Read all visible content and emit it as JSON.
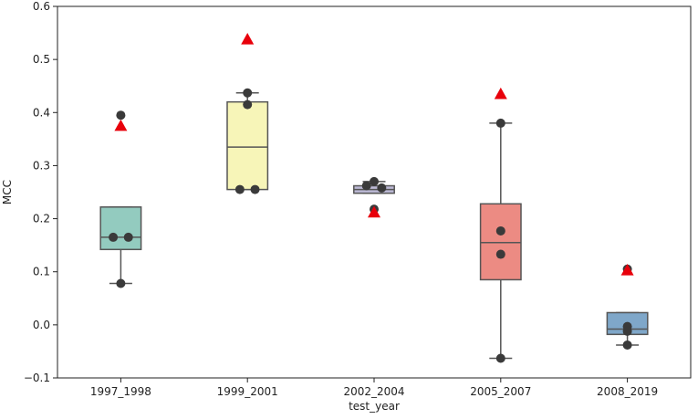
{
  "chart_data": {
    "type": "box",
    "title": "",
    "xlabel": "test_year",
    "ylabel": "MCC",
    "ylim": [
      -0.1,
      0.6
    ],
    "yticks": [
      -0.1,
      0.0,
      0.1,
      0.2,
      0.3,
      0.4,
      0.5,
      0.6
    ],
    "ytick_labels": [
      "−0.1",
      "0.0",
      "0.1",
      "0.2",
      "0.3",
      "0.4",
      "0.5",
      "0.6"
    ],
    "categories": [
      "1997_1998",
      "1999_2001",
      "2002_2004",
      "2005_2007",
      "2008_2019"
    ],
    "grid": false,
    "legend": "none",
    "boxes": [
      {
        "category": "1997_1998",
        "color": "#93cbbf",
        "whisker_low": 0.078,
        "q1": 0.142,
        "median": 0.165,
        "q3": 0.222,
        "whisker_high": 0.222,
        "points": [
          0.395,
          0.165,
          0.165,
          0.078
        ],
        "marker_value": 0.375
      },
      {
        "category": "1999_2001",
        "color": "#f7f5b8",
        "whisker_low": 0.255,
        "q1": 0.255,
        "median": 0.335,
        "q3": 0.42,
        "whisker_high": 0.437,
        "points": [
          0.437,
          0.415,
          0.255,
          0.255
        ],
        "marker_value": 0.538
      },
      {
        "category": "2002_2004",
        "color": "#bcb9d5",
        "whisker_low": 0.248,
        "q1": 0.248,
        "median": 0.255,
        "q3": 0.262,
        "whisker_high": 0.27,
        "points": [
          0.27,
          0.262,
          0.258,
          0.218
        ],
        "marker_value": 0.212
      },
      {
        "category": "2005_2007",
        "color": "#ec8b83",
        "whisker_low": -0.063,
        "q1": 0.085,
        "median": 0.155,
        "q3": 0.228,
        "whisker_high": 0.38,
        "points": [
          0.38,
          0.177,
          0.133,
          -0.063
        ],
        "marker_value": 0.435
      },
      {
        "category": "2008_2019",
        "color": "#7fa7c9",
        "whisker_low": -0.038,
        "q1": -0.018,
        "median": -0.008,
        "q3": 0.023,
        "whisker_high": 0.023,
        "points": [
          0.105,
          -0.003,
          -0.012,
          -0.038
        ],
        "marker_value": 0.103
      }
    ],
    "colors": {
      "median_line": "#555555",
      "box_edge": "#555555",
      "point": "#3a3a3a",
      "marker": "#e8000b"
    }
  }
}
